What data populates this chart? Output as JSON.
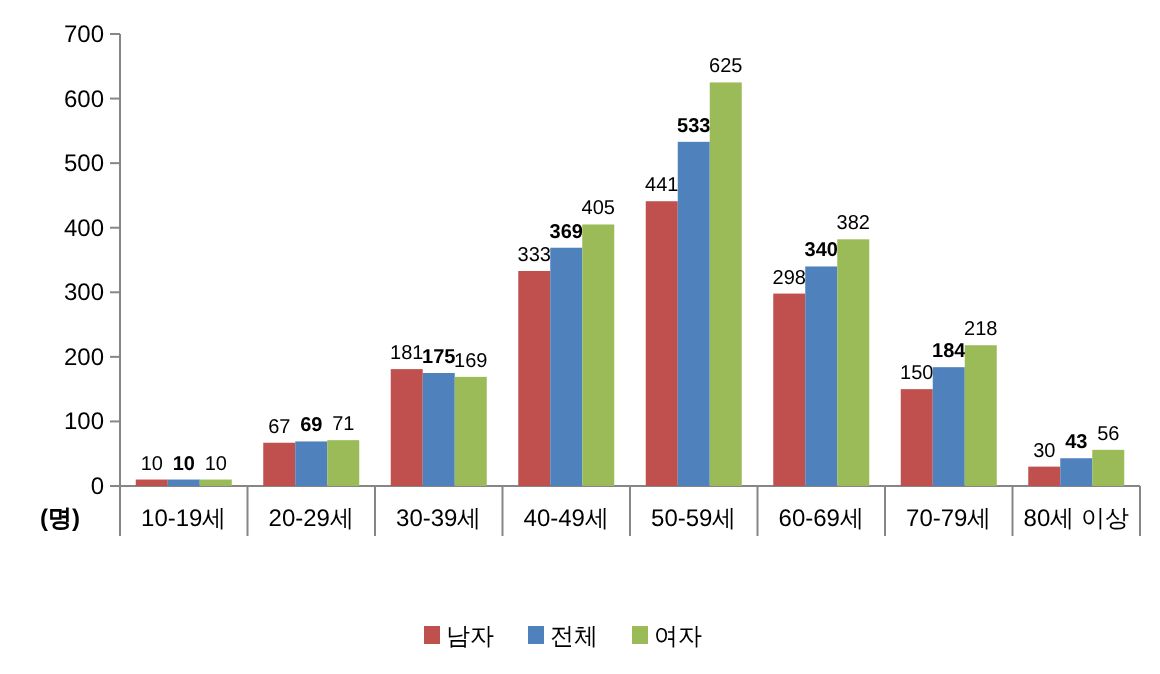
{
  "chart_data": {
    "type": "bar",
    "ylabel": "(명)",
    "categories": [
      "10-19세",
      "20-29세",
      "30-39세",
      "40-49세",
      "50-59세",
      "60-69세",
      "70-79세",
      "80세 이상"
    ],
    "series": [
      {
        "name": "남자",
        "color": "#c0504d",
        "values": [
          10,
          67,
          181,
          333,
          441,
          298,
          150,
          30
        ]
      },
      {
        "name": "전체",
        "color": "#4f81bd",
        "values": [
          10,
          69,
          175,
          369,
          533,
          340,
          184,
          43
        ]
      },
      {
        "name": "여자",
        "color": "#9bbb59",
        "values": [
          10,
          71,
          169,
          405,
          625,
          382,
          218,
          56
        ]
      }
    ],
    "ylim": [
      0,
      700
    ],
    "yticks": [
      0,
      100,
      200,
      300,
      400,
      500,
      600,
      700
    ],
    "grid": false,
    "data_labels": true,
    "legend": "bottom"
  }
}
